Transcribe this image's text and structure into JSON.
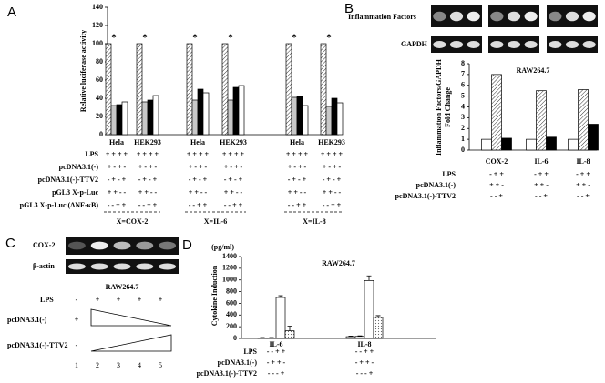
{
  "chart_data": [
    {
      "panel": "A",
      "type": "bar",
      "ylabel": "Relative luciferase activity",
      "ylim": [
        0,
        140
      ],
      "yticks": [
        0,
        20,
        40,
        60,
        80,
        100,
        120,
        140
      ],
      "categories": [
        "Hela",
        "HEK293",
        "Hela",
        "HEK293",
        "Hela",
        "HEK293"
      ],
      "series": [
        {
          "color": "#ffffff",
          "pattern": "hatch",
          "values": [
            100,
            100,
            100,
            100,
            100,
            100
          ]
        },
        {
          "color": "#c8c8c8",
          "values": [
            32,
            36,
            38,
            38,
            41,
            31
          ]
        },
        {
          "color": "#000000",
          "values": [
            33,
            38,
            50,
            52,
            42,
            40
          ]
        },
        {
          "color": "#ffffff",
          "values": [
            36,
            43,
            46,
            54,
            32,
            35
          ]
        }
      ],
      "annotations": [
        "*",
        "*",
        "*",
        "*",
        "*",
        "*"
      ],
      "conditions": [
        {
          "label": "LPS",
          "signs": [
            "+ + + +",
            "+ + + +",
            "+ + + +",
            "+ + + +",
            "+ + + +",
            "+ + + +"
          ]
        },
        {
          "label": "pcDNA3.1(-)",
          "signs": [
            "+ - + -",
            "+ - + -",
            "+ - + -",
            "+ - + -",
            "+ - + -",
            "+ - + -"
          ]
        },
        {
          "label": "pcDNA3.1(-)-TTV2",
          "signs": [
            "- + - +",
            "- + - +",
            "- + - +",
            "- + - +",
            "- + - +",
            "- + - +"
          ]
        },
        {
          "label": "pGL3 X-p-Luc",
          "signs": [
            "+ + - -",
            "+ + - -",
            "+ + - -",
            "+ + - -",
            "+ + - -",
            "+ + - -"
          ]
        },
        {
          "label": "pGL3 X-p-Luc (ΔNF-κB)",
          "signs": [
            "- - + +",
            "- - + +",
            "- - + +",
            "- - + +",
            "- - + +",
            "- - + +"
          ]
        }
      ],
      "groups": [
        "X=COX-2",
        "X=IL-6",
        "X=IL-8"
      ]
    },
    {
      "panel": "B",
      "type": "bar",
      "title": "RAW264.7",
      "gel_labels": [
        "Inflammation Factors",
        "GAPDH"
      ],
      "ylabel": [
        "Inflammation Factors/GAPDH",
        "Fold Change"
      ],
      "ylim": [
        0,
        8
      ],
      "yticks": [
        0,
        1,
        2,
        3,
        4,
        5,
        6,
        7,
        8
      ],
      "categories": [
        "COX-2",
        "IL-6",
        "IL-8"
      ],
      "series": [
        {
          "color": "#ffffff",
          "values": [
            1,
            1,
            1
          ]
        },
        {
          "color": "#ffffff",
          "pattern": "hatch",
          "values": [
            7,
            5.5,
            5.6
          ]
        },
        {
          "color": "#000000",
          "values": [
            1.1,
            1.2,
            2.4
          ]
        }
      ],
      "conditions": [
        {
          "label": "LPS",
          "signs": [
            "- + +",
            "- + +",
            "- + +"
          ]
        },
        {
          "label": "pcDNA3.1(-)",
          "signs": [
            "+ + -",
            "+ + -",
            "+ + -"
          ]
        },
        {
          "label": "pcDNA3.1(-)-TTV2",
          "signs": [
            "- - +",
            "- - +",
            "- - +"
          ]
        }
      ]
    },
    {
      "panel": "D",
      "type": "bar",
      "title": "RAW264.7",
      "unit": "(pg/ml)",
      "ylabel": "Cytokine Induction",
      "ylim": [
        0,
        1400
      ],
      "yticks": [
        0,
        200,
        400,
        600,
        800,
        1000,
        1200,
        1400
      ],
      "categories": [
        "IL-6",
        "IL-8"
      ],
      "series": [
        {
          "color": "#ffffff",
          "values": [
            10,
            30
          ],
          "errors": [
            5,
            10
          ]
        },
        {
          "color": "#ffffff",
          "values": [
            10,
            35
          ],
          "errors": [
            5,
            10
          ]
        },
        {
          "color": "#ffffff",
          "values": [
            700,
            990
          ],
          "errors": [
            30,
            80
          ]
        },
        {
          "color": "#ffffff",
          "pattern": "dots",
          "values": [
            130,
            360
          ],
          "errors": [
            80,
            30
          ]
        }
      ],
      "conditions": [
        {
          "label": "LPS",
          "signs": [
            "- - + +",
            "- - + +"
          ]
        },
        {
          "label": "pcDNA3.1(-)",
          "signs": [
            "- + + -",
            "- + + -"
          ]
        },
        {
          "label": "pcDNA3.1(-)-TTV2",
          "signs": [
            "- - - +",
            "- - - +"
          ]
        }
      ]
    }
  ],
  "panel_c": {
    "panel": "C",
    "bands": [
      "COX-2",
      "β-actin"
    ],
    "cell": "RAW264.7",
    "rows": [
      {
        "label": "LPS",
        "signs": [
          "-",
          "+",
          "+",
          "+",
          "+"
        ]
      },
      {
        "label": "pcDNA3.1(-)",
        "signs": [
          "+"
        ]
      },
      {
        "label": "pcDNA3.1(-)-TTV2",
        "signs": [
          "-"
        ]
      }
    ],
    "lanes": [
      1,
      2,
      3,
      4,
      5
    ]
  }
}
